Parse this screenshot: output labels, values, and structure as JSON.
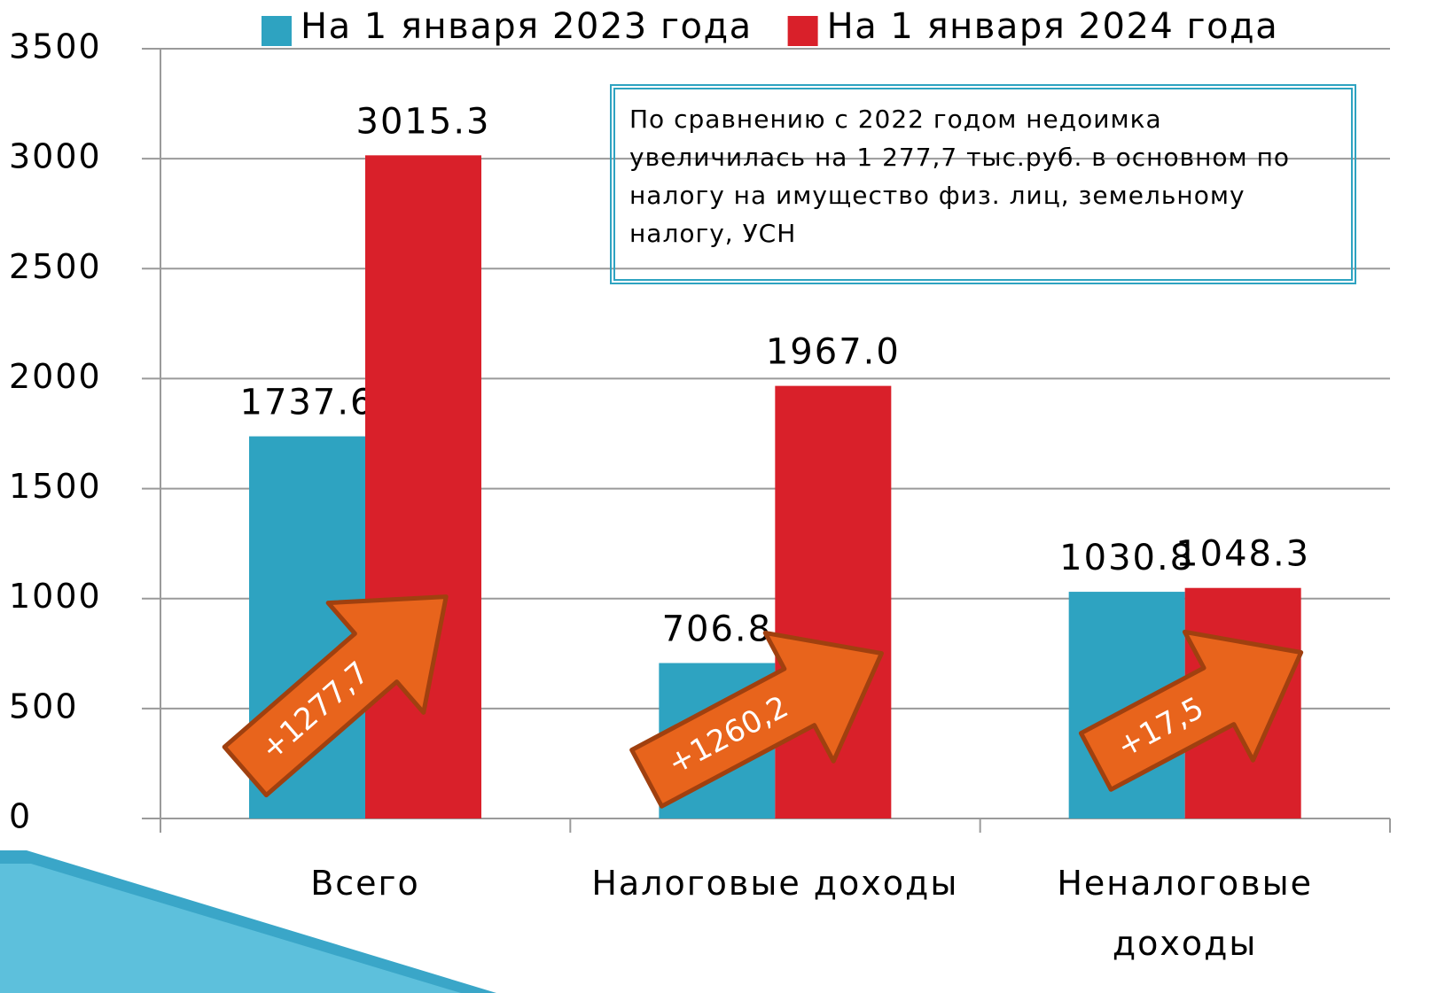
{
  "chart_data": {
    "type": "bar",
    "categories": [
      "Всего",
      "Налоговые доходы",
      "Неналоговые доходы"
    ],
    "series": [
      {
        "name": "На 1 января 2023 года",
        "color": "#2ea3c1",
        "values": [
          1737.6,
          706.8,
          1030.8
        ],
        "value_labels": [
          "1737.6",
          "706.8",
          "1030.8"
        ]
      },
      {
        "name": "На 1 января 2024 года",
        "color": "#d9202a",
        "values": [
          3015.3,
          1967.0,
          1048.3
        ],
        "value_labels": [
          "3015.3",
          "1967.0",
          "1048.3"
        ]
      }
    ],
    "ylim": [
      0,
      3500
    ],
    "yticks": [
      0,
      500,
      1000,
      1500,
      2000,
      2500,
      3000,
      3500
    ],
    "grid": true,
    "legend": "top",
    "note": "По сравнению с 2022 годом недоимка увеличилась на 1 277,7 тыс.руб. в основном по налогу на имущество физ. лиц, земельному налогу, УСН",
    "annotations": [
      "+1277,7",
      "+1260,2",
      "+17,5"
    ]
  }
}
